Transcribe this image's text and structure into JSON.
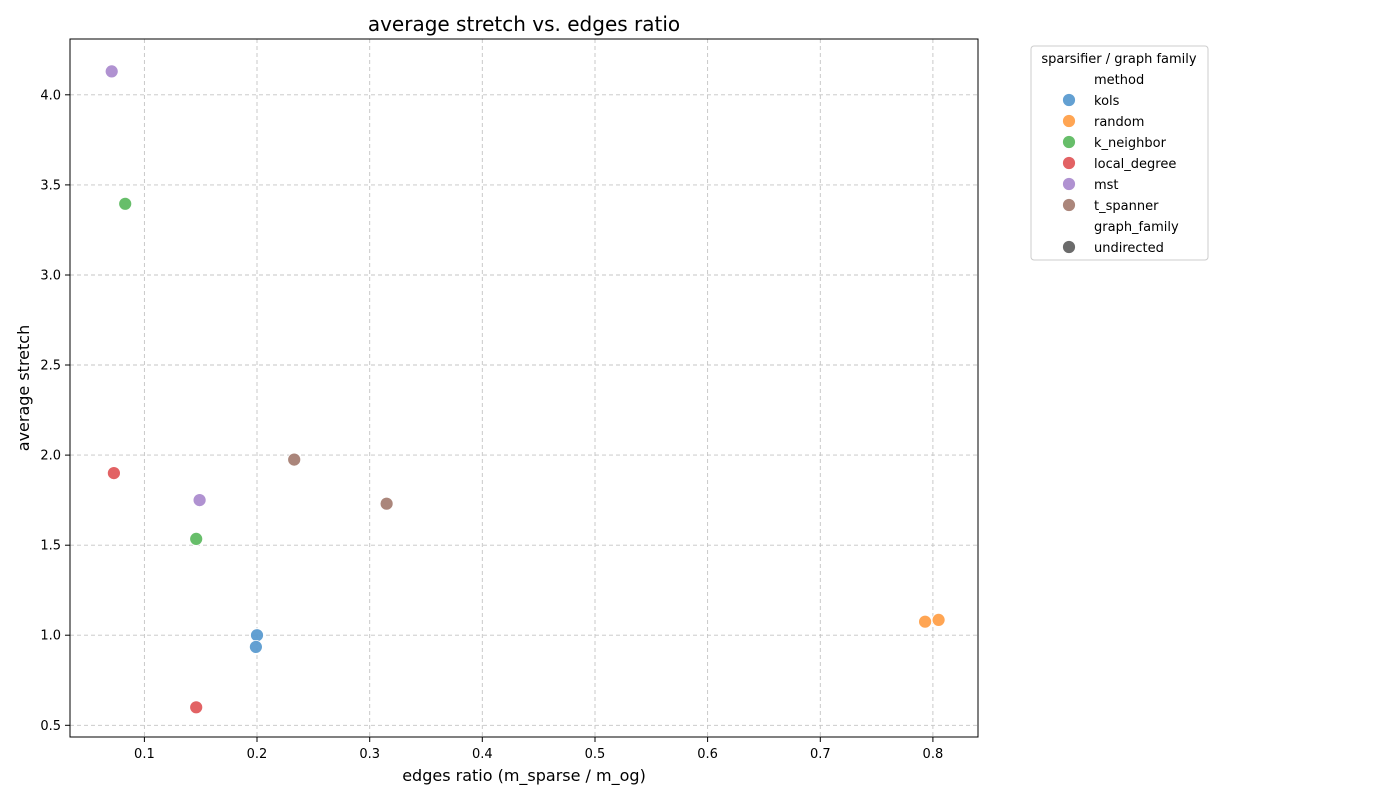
{
  "chart_data": {
    "type": "scatter",
    "title": "average stretch vs. edges ratio",
    "xlabel": "edges ratio (m_sparse / m_og)",
    "ylabel": "average stretch",
    "xlim": [
      0.034,
      0.84
    ],
    "ylim": [
      0.435,
      4.31
    ],
    "xticks": [
      0.1,
      0.2,
      0.3,
      0.4,
      0.5,
      0.6,
      0.7,
      0.8
    ],
    "yticks": [
      0.5,
      1.0,
      1.5,
      2.0,
      2.5,
      3.0,
      3.5,
      4.0
    ],
    "grid": true,
    "legend": {
      "title": "sparsifier / graph family",
      "placement": "outside-right-top",
      "method_header": "method",
      "family_header": "graph_family",
      "family_items": [
        {
          "label": "undirected",
          "color": "#6b6b6b"
        }
      ]
    },
    "series": [
      {
        "name": "kols",
        "color": "#5b9bd0",
        "points": [
          {
            "x": 0.2,
            "y": 1.0
          },
          {
            "x": 0.199,
            "y": 0.935
          }
        ]
      },
      {
        "name": "random",
        "color": "#ffa04a",
        "points": [
          {
            "x": 0.793,
            "y": 1.075
          },
          {
            "x": 0.805,
            "y": 1.085
          }
        ]
      },
      {
        "name": "k_neighbor",
        "color": "#5fbb62",
        "points": [
          {
            "x": 0.083,
            "y": 3.395
          },
          {
            "x": 0.146,
            "y": 1.535
          }
        ]
      },
      {
        "name": "local_degree",
        "color": "#e05a5c",
        "points": [
          {
            "x": 0.073,
            "y": 1.9
          },
          {
            "x": 0.146,
            "y": 0.6
          }
        ]
      },
      {
        "name": "mst",
        "color": "#ac8ccf",
        "points": [
          {
            "x": 0.071,
            "y": 4.13
          },
          {
            "x": 0.149,
            "y": 1.75
          }
        ]
      },
      {
        "name": "t_spanner",
        "color": "#a67f74",
        "points": [
          {
            "x": 0.233,
            "y": 1.975
          },
          {
            "x": 0.315,
            "y": 1.73
          }
        ]
      }
    ]
  }
}
